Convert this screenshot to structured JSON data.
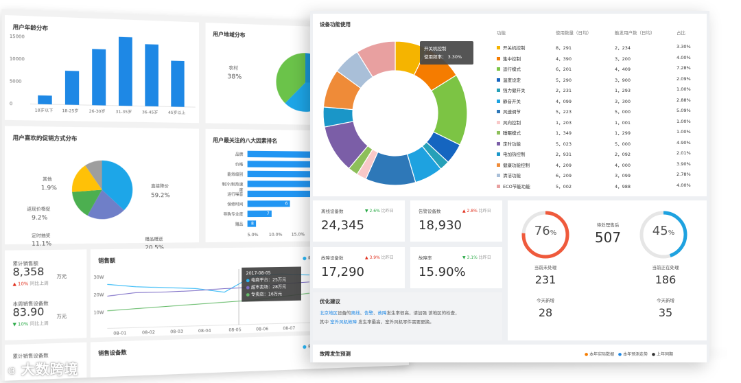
{
  "age": {
    "title": "用户年龄分布",
    "yticks": [
      "15000",
      "10000",
      "5000",
      "0"
    ],
    "cats": [
      "18岁以下",
      "18-25岁",
      "26-30岁",
      "31-35岁",
      "36-45岁",
      "45岁以上"
    ],
    "values": [
      2000,
      7800,
      13000,
      16000,
      14500,
      10800
    ]
  },
  "region": {
    "title": "用户地域分布",
    "label_name": "农村",
    "label_pct": "38%"
  },
  "promo": {
    "title": "用户喜欢的促销方式分布",
    "labels": [
      {
        "name": "其他",
        "pct": "1.9%"
      },
      {
        "name": "直接降价",
        "pct": "59.2%"
      },
      {
        "name": "返现价格促",
        "pct": "9.2%"
      },
      {
        "name": "定时抽奖",
        "pct": "11.1%"
      },
      {
        "name": "赠品赠送",
        "pct": "20.5%"
      }
    ]
  },
  "factors": {
    "title": "用户最关注的八大因素排名",
    "items": [
      {
        "name": "品牌",
        "v": ""
      },
      {
        "name": "价格",
        "v": ""
      },
      {
        "name": "能效级别",
        "v": ""
      },
      {
        "name": "制冷/制热速度",
        "v": ""
      },
      {
        "name": "运行噪音",
        "v": ""
      },
      {
        "name": "保修时间",
        "v": "6"
      },
      {
        "name": "导购专业度",
        "v": "7"
      },
      {
        "name": "赠品",
        "v": "8"
      }
    ],
    "xticks": [
      "5.0%",
      "10.0%",
      "15.0%"
    ]
  },
  "sales": {
    "l1": "累计销售额",
    "v1": "8,358",
    "u1": "万元",
    "c1": "10%",
    "s1": "同比上周",
    "l2": "本周销售设备数",
    "v2": "83.90",
    "u2": "万元",
    "c2": "10%",
    "s2": "同比上周",
    "chart_title": "销售额",
    "legend": "电商",
    "yticks": [
      "30W",
      "20W",
      "10W"
    ],
    "xticks": [
      "08-01",
      "08-02",
      "08-03",
      "08-04",
      "08-05",
      "08-06",
      "08-07"
    ],
    "tip": {
      "date": "2017-08-05",
      "a": "电商平台：25万元",
      "b": "超市卖场：28万元",
      "c": "专卖店：16万元"
    },
    "bottom_l": "累计销售设备数",
    "bottom_title": "销售设备数",
    "bottom_legend": "电商"
  },
  "device": {
    "title": "设备功能使用",
    "tip_name": "开关机控制",
    "tip_val": "使用频率： 3.30%",
    "cols": [
      "功能",
      "使用数量（日均）",
      "触发用户数（日均）",
      "占比"
    ],
    "rows": [
      [
        "开关机控制",
        "8，291",
        "2，234",
        "3.30%",
        "#f5b400"
      ],
      [
        "集中控制",
        "4，390",
        "3，200",
        "4.00%",
        "#f57c00"
      ],
      [
        "运行模式",
        "6，201",
        "4，409",
        "7.28%",
        "#7cc444"
      ],
      [
        "温度设定",
        "5，290",
        "3，900",
        "2.09%",
        "#1565c0"
      ],
      [
        "强力健开关",
        "2，231",
        "1，293",
        "1.00%",
        "#26a0b8"
      ],
      [
        "静音开关",
        "4，099",
        "3，300",
        "2.88%",
        "#1ea2e0"
      ],
      [
        "风速调节",
        "5，223",
        "5，000",
        "5.09%",
        "#2e78b8"
      ],
      [
        "风向控制",
        "1，203",
        "1，001",
        "1.00%",
        "#f8c8c8"
      ],
      [
        "睡眠模式",
        "1，349",
        "1，299",
        "1.00%",
        "#8dbf5a"
      ],
      [
        "定时功能",
        "5，023",
        "5，000",
        "4.90%",
        "#7b5ea7"
      ],
      [
        "电加热控制",
        "2，931",
        "2，092",
        "2.01%",
        "#1a96c8"
      ],
      [
        "健康功能控制",
        "4，209",
        "4，000",
        "3.90%",
        "#ef8b38"
      ],
      [
        "清洁功能",
        "6，209",
        "3，099",
        "2.78%",
        "#a9bfd8"
      ],
      [
        "ECO节能功能",
        "5，002",
        "4，988",
        "4.00%",
        "#e8a0a0"
      ]
    ]
  },
  "stats": [
    {
      "label": "离线设备数",
      "chg": "2.6%",
      "cmp": "比昨日",
      "val": "24,345",
      "dir": "down"
    },
    {
      "label": "告警设备数",
      "chg": "2.8%",
      "cmp": "比昨日",
      "val": "18,930",
      "dir": "up"
    },
    {
      "label": "故障设备数",
      "chg": "3.9%",
      "cmp": "比昨日",
      "val": "17,290",
      "dir": "up"
    },
    {
      "label": "故障率",
      "chg": "3.1%",
      "cmp": "比昨日",
      "val": "15.90%",
      "dir": "down"
    }
  ],
  "advice": {
    "title": "优化建议",
    "p1": "北京地区",
    "p2": "设备的",
    "p3": "离线",
    "p4": "、",
    "p5": "告警",
    "p6": "、",
    "p7": "故障",
    "p8": "发生率很高，请加强 该地区的检查，",
    "p9": "其中",
    "p10": "室外风机故障",
    "p11": "发生率最高，室外风机零件需要更换。"
  },
  "repair": {
    "g1": "76",
    "g1pct": "%",
    "g1level": 0.76,
    "g2": "45",
    "g2pct": "%",
    "g2level": 0.45,
    "wait_label": "待处理售后",
    "wait_val": "507",
    "a_label": "当前未处理",
    "a_val": "231",
    "b_label": "当前正在处理",
    "b_val": "186",
    "c_label": "今天新增",
    "c_val": "28",
    "d_label": "今天新增",
    "d_val": "35"
  },
  "forecast": {
    "title": "故障发生预测",
    "leg": [
      "本年实际数据",
      "本年预测走势",
      "上年同期"
    ]
  },
  "brand": "大数跨境"
}
